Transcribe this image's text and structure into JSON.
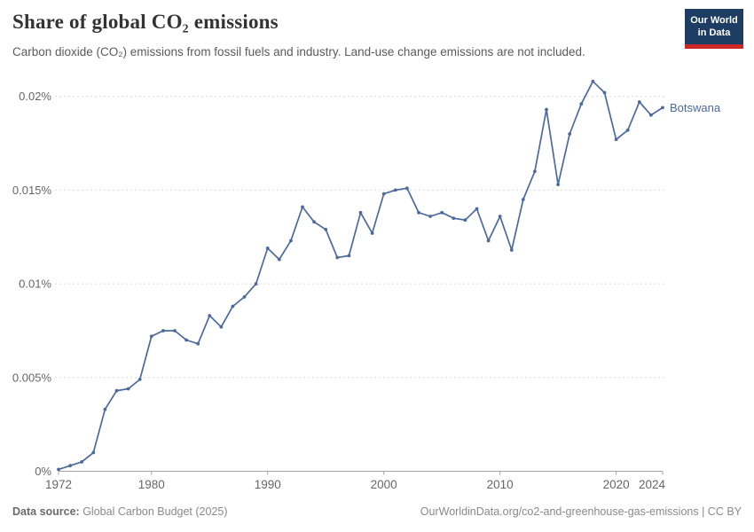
{
  "header": {
    "title": "Share of global CO₂ emissions",
    "subtitle": "Carbon dioxide (CO₂) emissions from fossil fuels and industry. Land-use change emissions are not included.",
    "logo": {
      "line1": "Our World",
      "line2": "in Data",
      "bg_color": "#1d3d63",
      "bar_color": "#cb2727"
    }
  },
  "footer": {
    "source_label": "Data source:",
    "source_value": " Global Carbon Budget (2025)",
    "link_text": "OurWorldinData.org/co2-and-greenhouse-gas-emissions | CC BY"
  },
  "chart_data": {
    "type": "line",
    "title": "Share of global CO₂ emissions",
    "subtitle": "Carbon dioxide (CO₂) emissions from fossil fuels and industry. Land-use change emissions are not included.",
    "series": [
      {
        "name": "Botswana",
        "color": "#4c6a9c",
        "x": [
          1972,
          1973,
          1974,
          1975,
          1976,
          1977,
          1978,
          1979,
          1980,
          1981,
          1982,
          1983,
          1984,
          1985,
          1986,
          1987,
          1988,
          1989,
          1990,
          1991,
          1992,
          1993,
          1994,
          1995,
          1996,
          1997,
          1998,
          1999,
          2000,
          2001,
          2002,
          2003,
          2004,
          2005,
          2006,
          2007,
          2008,
          2009,
          2010,
          2011,
          2012,
          2013,
          2014,
          2015,
          2016,
          2017,
          2018,
          2019,
          2020,
          2021,
          2022,
          2023,
          2024
        ],
        "values_percent": [
          0.0001,
          0.0003,
          0.0005,
          0.001,
          0.0033,
          0.0043,
          0.0044,
          0.0049,
          0.0072,
          0.0075,
          0.0075,
          0.007,
          0.0068,
          0.0083,
          0.0077,
          0.0088,
          0.0093,
          0.01,
          0.0119,
          0.0113,
          0.0123,
          0.0141,
          0.0133,
          0.0129,
          0.0114,
          0.0115,
          0.0138,
          0.0127,
          0.0148,
          0.015,
          0.0151,
          0.0138,
          0.0136,
          0.0138,
          0.0135,
          0.0134,
          0.014,
          0.0123,
          0.0136,
          0.0118,
          0.0145,
          0.016,
          0.0193,
          0.0153,
          0.018,
          0.0196,
          0.0208,
          0.0202,
          0.0177,
          0.0182,
          0.0197,
          0.019,
          0.0194
        ]
      }
    ],
    "end_label": "Botswana",
    "xlabel": "",
    "ylabel": "",
    "xlim": [
      1972,
      2024
    ],
    "ylim": [
      0,
      0.02
    ],
    "xticks": [
      1972,
      1980,
      1990,
      2000,
      2010,
      2020,
      2024
    ],
    "ytick_values": [
      0,
      0.005,
      0.01,
      0.015,
      0.02
    ],
    "ytick_labels": [
      "0%",
      "0.005%",
      "0.01%",
      "0.015%",
      "0.02%"
    ],
    "grid": "horizontal-dashed",
    "legend_position": "line-end",
    "axis_color": "#a3a3a3",
    "grid_color": "#dcdcdc",
    "tick_label_color": "#666666"
  }
}
